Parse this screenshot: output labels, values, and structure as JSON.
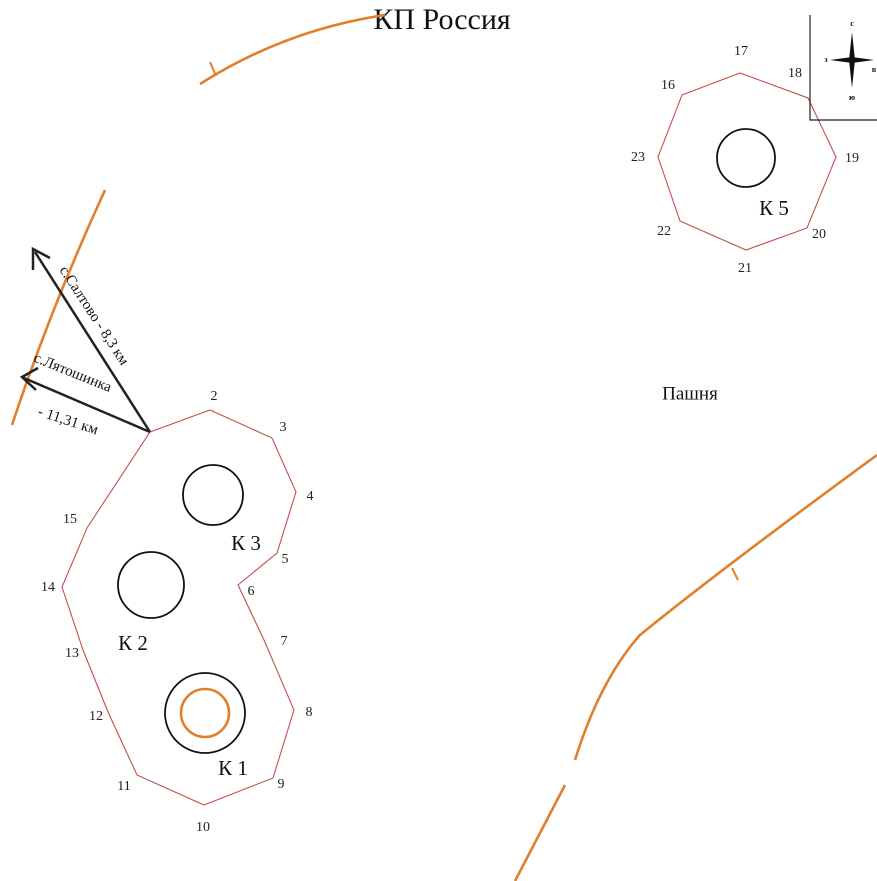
{
  "title": "КП  Россия",
  "points": [
    "2",
    "3",
    "4",
    "5",
    "6",
    "7",
    "8",
    "9",
    "10",
    "11",
    "12",
    "13",
    "14",
    "15",
    "16",
    "17",
    "18",
    "19",
    "20",
    "21",
    "22",
    "23"
  ],
  "wells": [
    "К 1",
    "К 2",
    "К 3",
    "К 5"
  ],
  "field": "Пашня",
  "directions": {
    "saltovo": "с.Салтово - 8,3 км",
    "lyatoshinka_1": "с.Лятошинка",
    "lyatoshinka_2": "- 11,31 км"
  },
  "compass": {
    "north": "с",
    "west": "з",
    "south": "ю",
    "east": "в"
  }
}
